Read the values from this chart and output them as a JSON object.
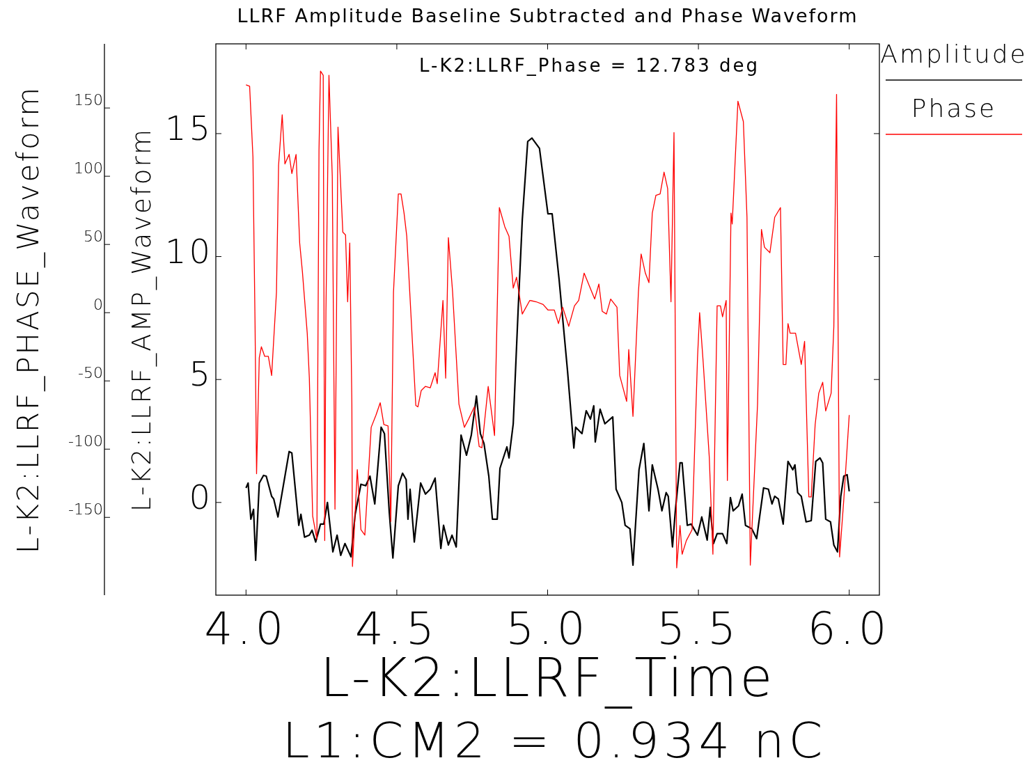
{
  "chart_data": {
    "type": "line",
    "title": "LLRF Amplitude Baseline Subtracted and Phase Waveform",
    "xlabel": "L-K2:LLRF_Time",
    "ylabel": "L-K2:LLRF_AMP_Waveform",
    "y2label": "L-K2:LLRF_PHASE_Waveform",
    "annotations": [
      "L-K2:LLRF_Phase = 12.783 deg",
      "L1:CM2 = 0.934 nC"
    ],
    "xlim": [
      3.9,
      6.1
    ],
    "xticks": [
      {
        "value": 4,
        "label": "4.0"
      },
      {
        "value": 4.5,
        "label": "4.5"
      },
      {
        "value": 5,
        "label": "5.0"
      },
      {
        "value": 5.5,
        "label": "5.5"
      },
      {
        "value": 6,
        "label": "6.0"
      }
    ],
    "ylim": [
      -3.77,
      18.65
    ],
    "yticks": [
      0,
      5,
      10,
      15
    ],
    "y2lim": [
      -207,
      197
    ],
    "y2ticks": [
      -150,
      -100,
      -50,
      0,
      50,
      100,
      150
    ],
    "legend": "right",
    "grid": false,
    "marker": "none",
    "line_style": "solid",
    "series": [
      {
        "name": "Amplitude",
        "color": "#000000",
        "x": [
          4.0,
          4.007,
          4.016,
          4.025,
          4.032,
          4.044,
          4.058,
          4.067,
          4.085,
          4.092,
          4.106,
          4.143,
          4.152,
          4.175,
          4.182,
          4.194,
          4.21,
          4.219,
          4.231,
          4.247,
          4.258,
          4.27,
          4.288,
          4.302,
          4.314,
          4.328,
          4.348,
          4.362,
          4.381,
          4.397,
          4.411,
          4.427,
          4.448,
          4.459,
          4.475,
          4.487,
          4.505,
          4.519,
          4.531,
          4.537,
          4.544,
          4.558,
          4.579,
          4.595,
          4.611,
          4.627,
          4.646,
          4.655,
          4.671,
          4.683,
          4.697,
          4.713,
          4.731,
          4.747,
          4.764,
          4.777,
          4.789,
          4.805,
          4.817,
          4.833,
          4.842,
          4.865,
          4.872,
          4.886,
          4.902,
          4.916,
          4.934,
          4.948,
          4.973,
          5.001,
          5.015,
          5.038,
          5.066,
          5.087,
          5.093,
          5.114,
          5.128,
          5.142,
          5.153,
          5.158,
          5.174,
          5.19,
          5.216,
          5.227,
          5.246,
          5.257,
          5.273,
          5.283,
          5.303,
          5.319,
          5.336,
          5.347,
          5.366,
          5.379,
          5.393,
          5.4,
          5.414,
          5.423,
          5.439,
          5.446,
          5.463,
          5.476,
          5.497,
          5.511,
          5.529,
          5.539,
          5.55,
          5.562,
          5.58,
          5.594,
          5.606,
          5.615,
          5.633,
          5.645,
          5.656,
          5.677,
          5.693,
          5.716,
          5.732,
          5.744,
          5.753,
          5.765,
          5.781,
          5.797,
          5.813,
          5.82,
          5.829,
          5.841,
          5.857,
          5.874,
          5.889,
          5.903,
          5.912,
          5.922,
          5.938,
          5.949,
          5.961,
          5.972,
          5.982,
          5.993,
          6.0
        ],
        "values": [
          0.59,
          0.79,
          -0.68,
          -0.28,
          -2.35,
          0.79,
          1.1,
          1.07,
          0.25,
          0.14,
          -0.59,
          2.07,
          2.01,
          -0.93,
          -0.48,
          -1.41,
          -1.33,
          -1.13,
          -1.61,
          -0.88,
          -0.88,
          0.0,
          -2.01,
          -1.33,
          -2.15,
          -1.67,
          -2.21,
          -0.48,
          0.74,
          0.68,
          1.07,
          -0.06,
          3.06,
          2.8,
          -0.4,
          -2.26,
          0.68,
          1.19,
          0.93,
          -0.68,
          0.54,
          -1.61,
          0.79,
          0.34,
          0.54,
          0.99,
          -1.87,
          -0.93,
          -1.73,
          -1.33,
          -1.81,
          2.74,
          1.92,
          2.74,
          4.33,
          2.8,
          2.4,
          1.07,
          -0.68,
          -0.68,
          1.39,
          2.26,
          1.81,
          3.2,
          7.75,
          11.49,
          14.68,
          14.82,
          14.4,
          11.74,
          11.74,
          9.08,
          5.35,
          2.21,
          3.06,
          2.8,
          3.73,
          3.39,
          3.93,
          2.46,
          3.79,
          3.2,
          3.48,
          0.54,
          0.0,
          -0.93,
          -1.07,
          -2.55,
          1.33,
          2.4,
          -0.34,
          1.53,
          0.54,
          -0.34,
          0.4,
          0.25,
          -1.81,
          -0.4,
          1.61,
          1.61,
          -0.93,
          -0.88,
          -1.33,
          -0.59,
          -1.53,
          -0.2,
          -1.67,
          -1.27,
          -1.27,
          -1.67,
          0.2,
          -0.34,
          -0.14,
          0.34,
          -0.93,
          -1.07,
          -1.47,
          0.59,
          0.54,
          -0.06,
          0.25,
          0.14,
          -0.88,
          1.67,
          1.33,
          1.53,
          0.4,
          0.25,
          -0.79,
          -0.74,
          1.67,
          1.81,
          1.61,
          -0.68,
          -0.79,
          -1.73,
          -2.01,
          0.25,
          1.07,
          1.13,
          0.45
        ]
      },
      {
        "name": "Phase",
        "color": "#ff0000",
        "axis": "y2",
        "x": [
          4.0,
          4.012,
          4.023,
          4.03,
          4.035,
          4.044,
          4.051,
          4.062,
          4.074,
          4.085,
          4.101,
          4.108,
          4.12,
          4.129,
          4.143,
          4.152,
          4.166,
          4.178,
          4.187,
          4.203,
          4.21,
          4.221,
          4.235,
          4.242,
          4.247,
          4.256,
          4.261,
          4.265,
          4.275,
          4.286,
          4.295,
          4.305,
          4.321,
          4.33,
          4.337,
          4.344,
          4.351,
          4.353,
          4.369,
          4.381,
          4.394,
          4.415,
          4.431,
          4.445,
          4.457,
          4.471,
          4.48,
          4.489,
          4.505,
          4.514,
          4.524,
          4.533,
          4.563,
          4.57,
          4.581,
          4.595,
          4.611,
          4.627,
          4.634,
          4.653,
          4.662,
          4.671,
          4.685,
          4.706,
          4.724,
          4.738,
          4.757,
          4.773,
          4.782,
          4.803,
          4.824,
          4.84,
          4.858,
          4.872,
          4.886,
          4.897,
          4.916,
          4.941,
          4.962,
          4.985,
          5.001,
          5.022,
          5.036,
          5.05,
          5.07,
          5.089,
          5.103,
          5.121,
          5.156,
          5.17,
          5.181,
          5.195,
          5.209,
          5.23,
          5.239,
          5.262,
          5.269,
          5.283,
          5.301,
          5.31,
          5.324,
          5.336,
          5.347,
          5.359,
          5.373,
          5.386,
          5.398,
          5.409,
          5.419,
          5.428,
          5.439,
          5.446,
          5.46,
          5.479,
          5.497,
          5.504,
          5.516,
          5.536,
          5.548,
          5.562,
          5.573,
          5.58,
          5.592,
          5.596,
          5.608,
          5.612,
          5.631,
          5.649,
          5.661,
          5.672,
          5.696,
          5.709,
          5.719,
          5.737,
          5.753,
          5.772,
          5.781,
          5.79,
          5.797,
          5.804,
          5.822,
          5.841,
          5.852,
          5.866,
          5.874,
          5.887,
          5.899,
          5.912,
          5.922,
          5.94,
          5.949,
          5.958,
          5.963,
          5.968,
          5.982,
          6.0
        ],
        "values": [
          167,
          166,
          114,
          -9,
          -118,
          -33,
          -25,
          -32,
          -32,
          -46,
          15,
          108,
          145,
          109,
          116,
          102,
          116,
          51,
          30,
          -15,
          -48,
          -149,
          -166,
          119,
          177,
          174,
          -167,
          1,
          174,
          100,
          -144,
          136,
          59,
          57,
          8,
          51,
          -67,
          -186,
          -115,
          -159,
          -163,
          -84,
          -75,
          -66,
          -82,
          -83,
          -153,
          15,
          87,
          87,
          73,
          56,
          -68,
          -69,
          -57,
          -54,
          -55,
          -44,
          -52,
          9,
          -48,
          55,
          15,
          -67,
          -84,
          -78,
          -69,
          -98,
          -99,
          -54,
          -90,
          77,
          63,
          56,
          18,
          26,
          -1,
          9,
          8,
          6,
          2,
          2,
          -8,
          4,
          -10,
          5,
          9,
          29,
          10,
          21,
          1,
          -1,
          10,
          4,
          -46,
          -65,
          -27,
          -76,
          15,
          43,
          29,
          22,
          73,
          86,
          87,
          103,
          91,
          8,
          132,
          -187,
          -156,
          -177,
          -167,
          -159,
          -33,
          0,
          -37,
          -106,
          -177,
          5,
          5,
          -3,
          9,
          -123,
          73,
          65,
          155,
          140,
          70,
          -185,
          -67,
          61,
          48,
          44,
          70,
          77,
          -38,
          -38,
          -8,
          -15,
          -15,
          -38,
          -21,
          -135,
          -135,
          -82,
          -59,
          -51,
          -72,
          -59,
          -10,
          160,
          -9,
          -179,
          -137,
          -75
        ]
      }
    ]
  }
}
